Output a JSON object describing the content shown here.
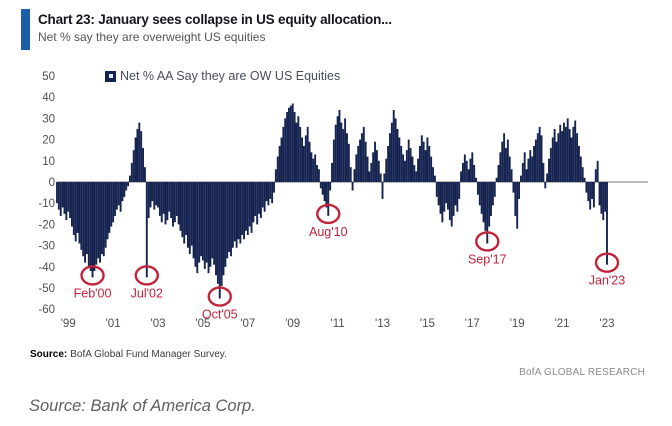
{
  "header": {
    "title": "Chart 23: January sees collapse in US equity allocation...",
    "subtitle": "Net % say they are overweight US equities"
  },
  "footer": {
    "source_label": "Source:",
    "source_text": "BofA Global Fund Manager Survey.",
    "brand": "BofA GLOBAL RESEARCH"
  },
  "caption": "Source: Bank of America Corp.",
  "chart_data": {
    "type": "bar",
    "title": "Chart 23: January sees collapse in US equity allocation...",
    "subtitle": "Net % say they are overweight US equities",
    "legend_label": "Net % AA Say they are OW US Equities",
    "unit": "net %",
    "frequency": "monthly",
    "start": "1998-07",
    "end": "2023-01",
    "ylim": [
      -60,
      50
    ],
    "y_ticks": [
      50,
      40,
      30,
      20,
      10,
      0,
      -10,
      -20,
      -30,
      -40,
      -50,
      -60
    ],
    "x_ticks": [
      "'99",
      "'01",
      "'03",
      "'05",
      "'07",
      "'09",
      "'11",
      "'13",
      "'15",
      "'17",
      "'19",
      "'21",
      "'23"
    ],
    "grid": false,
    "legend_position": "top",
    "bar_color": "#14234f",
    "zero_line_color": "#8f8f8f",
    "annotation_color": "#c2233a",
    "series": [
      {
        "name": "Net % AA Say they are OW US Equities",
        "monthly": [
          {
            "year": 1998,
            "start_month": 7,
            "values": [
              -10,
              -13,
              -16,
              -12,
              -15,
              -18
            ]
          },
          {
            "year": 1999,
            "values": [
              -14,
              -17,
              -21,
              -25,
              -28,
              -24,
              -29,
              -32,
              -35,
              -38,
              -34,
              -40
            ]
          },
          {
            "year": 2000,
            "values": [
              -42,
              -45,
              -42,
              -39,
              -36,
              -38,
              -34,
              -35,
              -31,
              -27,
              -24,
              -21
            ]
          },
          {
            "year": 2001,
            "values": [
              -19,
              -16,
              -13,
              -11,
              -14,
              -9,
              -7,
              -4,
              -2,
              3,
              9,
              15
            ]
          },
          {
            "year": 2002,
            "values": [
              21,
              25,
              28,
              24,
              16,
              7,
              -45,
              -17,
              -12,
              -9,
              -13,
              -11
            ]
          },
          {
            "year": 2003,
            "values": [
              -12,
              -16,
              -19,
              -15,
              -20,
              -18,
              -14,
              -17,
              -21,
              -19,
              -16,
              -20
            ]
          },
          {
            "year": 2004,
            "values": [
              -23,
              -26,
              -29,
              -25,
              -31,
              -34,
              -30,
              -36,
              -40,
              -43,
              -38,
              -35
            ]
          },
          {
            "year": 2005,
            "values": [
              -37,
              -41,
              -38,
              -43,
              -40,
              -36,
              -39,
              -44,
              -48,
              -55,
              -49,
              -44
            ]
          },
          {
            "year": 2006,
            "values": [
              -40,
              -36,
              -33,
              -35,
              -31,
              -28,
              -31,
              -27,
              -29,
              -25,
              -27,
              -23
            ]
          },
          {
            "year": 2007,
            "values": [
              -25,
              -21,
              -24,
              -19,
              -16,
              -20,
              -15,
              -17,
              -12,
              -14,
              -9,
              -11
            ]
          },
          {
            "year": 2008,
            "values": [
              -8,
              -10,
              -5,
              6,
              12,
              17,
              21,
              26,
              30,
              33,
              35,
              36
            ]
          },
          {
            "year": 2009,
            "values": [
              37,
              33,
              28,
              31,
              26,
              21,
              17,
              22,
              26,
              19,
              14,
              11
            ]
          },
          {
            "year": 2010,
            "values": [
              13,
              8,
              6,
              -3,
              -6,
              -9,
              -12,
              -16,
              -4,
              9,
              20,
              27
            ]
          },
          {
            "year": 2011,
            "values": [
              31,
              34,
              28,
              25,
              30,
              23,
              18,
              7,
              -4,
              6,
              13,
              17
            ]
          },
          {
            "year": 2012,
            "values": [
              20,
              23,
              26,
              19,
              12,
              5,
              9,
              14,
              19,
              15,
              10,
              4
            ]
          },
          {
            "year": 2013,
            "values": [
              -8,
              4,
              11,
              17,
              23,
              28,
              34,
              30,
              25,
              21,
              17,
              13
            ]
          },
          {
            "year": 2014,
            "values": [
              10,
              15,
              20,
              16,
              12,
              8,
              5,
              11,
              17,
              22,
              19,
              15
            ]
          },
          {
            "year": 2015,
            "values": [
              21,
              17,
              12,
              7,
              3,
              -7,
              -11,
              -15,
              -19,
              -14,
              -10,
              -13
            ]
          },
          {
            "year": 2016,
            "values": [
              -18,
              -21,
              -16,
              -11,
              -14,
              -8,
              5,
              9,
              13,
              10,
              6,
              11
            ]
          },
          {
            "year": 2017,
            "values": [
              14,
              8,
              2,
              -6,
              -11,
              -15,
              -19,
              -23,
              -29,
              -21,
              -16,
              -11
            ]
          },
          {
            "year": 2018,
            "values": [
              -7,
              2,
              8,
              14,
              19,
              23,
              16,
              20,
              12,
              6,
              -5,
              -16
            ]
          },
          {
            "year": 2019,
            "values": [
              -22,
              -8,
              3,
              9,
              14,
              6,
              11,
              15,
              12,
              17,
              20,
              23
            ]
          },
          {
            "year": 2020,
            "values": [
              26,
              22,
              9,
              -3,
              4,
              11,
              16,
              21,
              25,
              19,
              23,
              27
            ]
          },
          {
            "year": 2021,
            "values": [
              24,
              28,
              26,
              30,
              25,
              21,
              26,
              29,
              23,
              17,
              12,
              7
            ]
          },
          {
            "year": 2022,
            "values": [
              2,
              -5,
              -9,
              -13,
              -8,
              -12,
              6,
              10,
              -11,
              -15,
              -18,
              -14
            ]
          },
          {
            "year": 2023,
            "values": [
              -39
            ]
          }
        ]
      }
    ],
    "annotations": [
      {
        "label": "Feb'00",
        "month_index": 19,
        "value": -45
      },
      {
        "label": "Jul'02",
        "month_index": 48,
        "value": -45
      },
      {
        "label": "Oct'05",
        "month_index": 87,
        "value": -55
      },
      {
        "label": "Aug'10",
        "month_index": 145,
        "value": -16
      },
      {
        "label": "Sep'17",
        "month_index": 230,
        "value": -29
      },
      {
        "label": "Jan'23",
        "month_index": 294,
        "value": -39
      }
    ]
  }
}
